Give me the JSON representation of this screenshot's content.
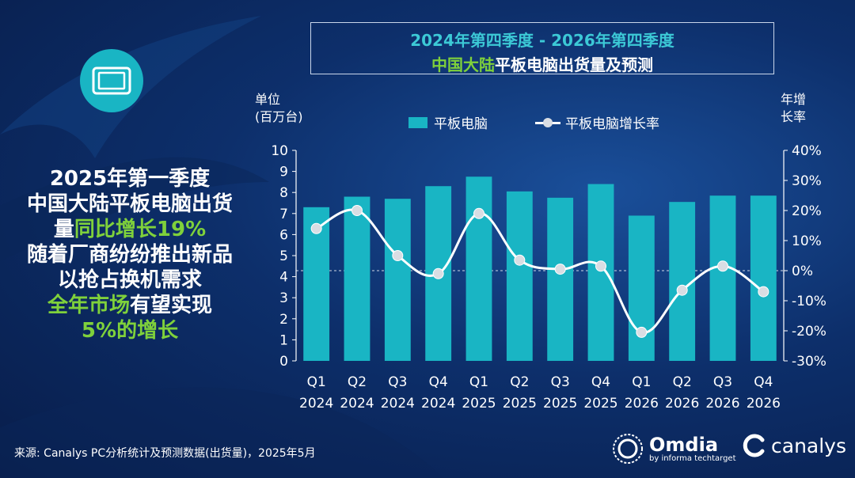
{
  "title": {
    "line1": "2024年第四季度 - 2026年第四季度",
    "line2_highlight": "中国大陆",
    "line2_rest": "平板电脑出货量及预测"
  },
  "icon": "tablet-icon",
  "summary": {
    "l1": "2025年第一季度",
    "l2": "中国大陆平板电脑出货",
    "l3a": "量",
    "l3b": "同比增长19%",
    "l4": "随着厂商纷纷推出新品",
    "l5": "以抢占换机需求",
    "l6a": "全年市场",
    "l6b": "有望实现",
    "l7": "5%的增长"
  },
  "units": {
    "left1": "单位",
    "left2": "(百万台)",
    "right1": "年增",
    "right2": "长率"
  },
  "legend": {
    "bar": "平板电脑",
    "line": "平板电脑增长率"
  },
  "source": "来源: Canalys PC分析统计及预测数据(出货量)，2025年5月",
  "logos": {
    "omdia": "Omdia",
    "omdia_sub": "by informa techtarget",
    "canalys": "canalys"
  },
  "colors": {
    "bar": "#19b5c4",
    "line": "#ffffff",
    "marker": "#d9dde3",
    "green": "#7fd13b"
  },
  "chart_data": {
    "type": "bar",
    "title": "2024年第四季度 - 2026年第四季度 中国大陆平板电脑出货量及预测",
    "categories": [
      [
        "Q1",
        "2024"
      ],
      [
        "Q2",
        "2024"
      ],
      [
        "Q3",
        "2024"
      ],
      [
        "Q4",
        "2024"
      ],
      [
        "Q1",
        "2025"
      ],
      [
        "Q2",
        "2025"
      ],
      [
        "Q3",
        "2025"
      ],
      [
        "Q4",
        "2025"
      ],
      [
        "Q1",
        "2026"
      ],
      [
        "Q2",
        "2026"
      ],
      [
        "Q3",
        "2026"
      ],
      [
        "Q4",
        "2026"
      ]
    ],
    "series": [
      {
        "name": "平板电脑",
        "type": "bar",
        "axis": "left",
        "values": [
          7.3,
          7.8,
          7.7,
          8.3,
          8.75,
          8.05,
          7.75,
          8.4,
          6.9,
          7.55,
          7.85,
          7.85
        ]
      },
      {
        "name": "平板电脑增长率",
        "type": "line",
        "axis": "right",
        "values": [
          14,
          20,
          5,
          -1,
          19,
          3.5,
          0.5,
          1.5,
          -20.5,
          -6.5,
          1.5,
          -7
        ]
      }
    ],
    "y_left": {
      "min": 0,
      "max": 10,
      "ticks": [
        "0",
        "1",
        "2",
        "3",
        "4",
        "5",
        "6",
        "7",
        "8",
        "9",
        "10"
      ]
    },
    "y_right": {
      "min": -30,
      "max": 40,
      "ticks": [
        "-30%",
        "-20%",
        "-10%",
        "0%",
        "10%",
        "20%",
        "30%",
        "40%"
      ]
    }
  }
}
